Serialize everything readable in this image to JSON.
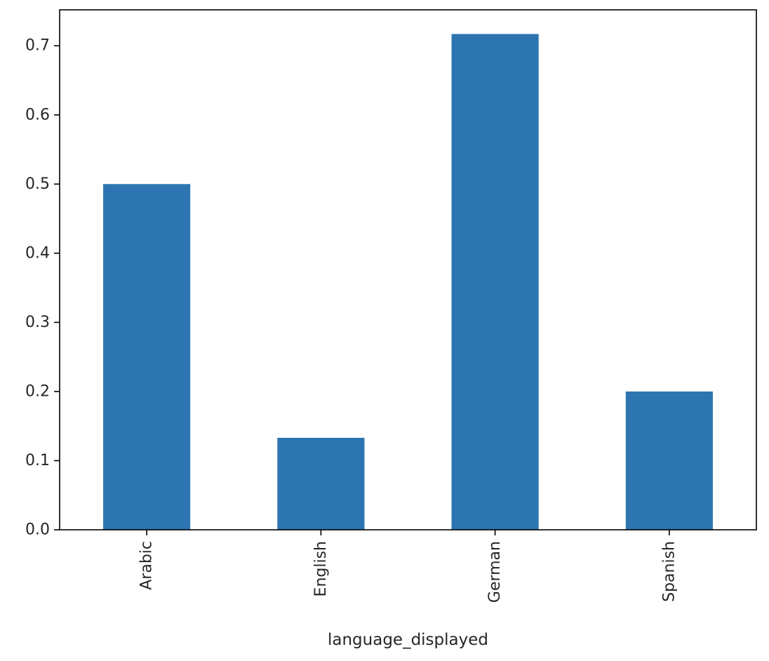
{
  "chart_data": {
    "type": "bar",
    "categories": [
      "Arabic",
      "English",
      "German",
      "Spanish"
    ],
    "values": [
      0.5,
      0.133,
      0.717,
      0.2
    ],
    "xlabel": "language_displayed",
    "ylabel": "",
    "ylim": [
      0,
      0.752
    ],
    "yticks": [
      0.0,
      0.1,
      0.2,
      0.3,
      0.4,
      0.5,
      0.6,
      0.7
    ],
    "ytick_labels": [
      "0.0",
      "0.1",
      "0.2",
      "0.3",
      "0.4",
      "0.5",
      "0.6",
      "0.7"
    ],
    "bar_color": "#2c75b0",
    "grid": false,
    "legend": "none"
  }
}
